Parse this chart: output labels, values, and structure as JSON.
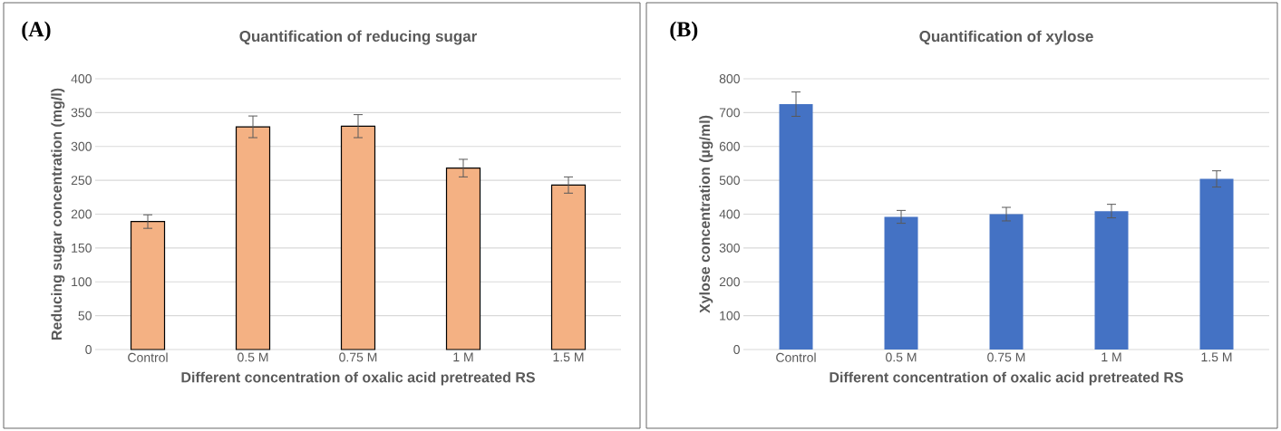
{
  "chart_data": [
    {
      "type": "bar",
      "title": "Quantification of reducing sugar",
      "xlabel": "Different concentration of oxalic acid pretreated RS",
      "ylabel": "Reducing sugar concentration (mg/l)",
      "annotations": [
        "(A)"
      ],
      "categories": [
        "Control",
        "0.5 M",
        "0.75 M",
        "1 M",
        "1.5 M"
      ],
      "values": [
        189,
        329,
        330,
        268,
        243
      ],
      "errors": [
        10,
        16,
        17,
        13,
        12
      ],
      "color": "#f4b183",
      "ylim": [
        0,
        400
      ],
      "yticks": [
        0,
        50,
        100,
        150,
        200,
        250,
        300,
        350,
        400
      ],
      "grid": "y"
    },
    {
      "type": "bar",
      "title": "Quantification of xylose",
      "xlabel": "Different concentration of oxalic acid pretreated RS",
      "ylabel": "Xylose concentration (µg/ml)",
      "annotations": [
        "(B)"
      ],
      "categories": [
        "Control",
        "0.5 M",
        "0.75 M",
        "1 M",
        "1.5 M"
      ],
      "values": [
        725,
        392,
        400,
        409,
        504
      ],
      "errors": [
        36,
        19,
        20,
        20,
        24
      ],
      "color": "#4472c4",
      "ylim": [
        0,
        800
      ],
      "yticks": [
        0,
        100,
        200,
        300,
        400,
        500,
        600,
        700,
        800
      ],
      "grid": "y"
    }
  ]
}
